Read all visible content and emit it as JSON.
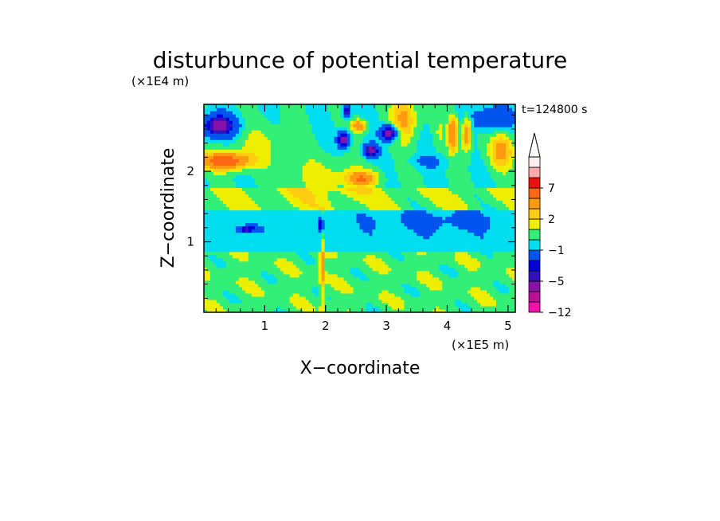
{
  "chart_data": {
    "type": "heatmap",
    "title": "disturbunce of potential temperature",
    "time_label": "t=124800 s",
    "xlabel": "X−coordinate",
    "ylabel": "Z−coordinate",
    "x_unit": "(×1E5 m)",
    "y_unit": "(×1E4 m)",
    "xlim": [
      0,
      5.12
    ],
    "ylim": [
      0,
      2.95
    ],
    "x_ticks": [
      "1",
      "2",
      "3",
      "4",
      "5"
    ],
    "y_ticks": [
      "1",
      "2"
    ],
    "colorbar": {
      "levels": [
        -12,
        -10,
        -8,
        -5,
        -4,
        -3,
        -1,
        0,
        1,
        2,
        3,
        5,
        7,
        8,
        9
      ],
      "labeled_ticks": [
        "−12",
        "−5",
        "−1",
        "2",
        "7"
      ],
      "colors": [
        "#ee11aa",
        "#bb1199",
        "#8811aa",
        "#3311bb",
        "#0000dd",
        "#0055ee",
        "#00ddee",
        "#33ee77",
        "#eeee00",
        "#ffcc11",
        "#ff9911",
        "#ff6611",
        "#ee1111",
        "#ffaaaa",
        "#ffeeee"
      ],
      "extend": "max"
    },
    "field_features": [
      {
        "x": 1.0,
        "z": 0.5,
        "value": 0.5,
        "description": "low-level warm layer"
      },
      {
        "x": 2.0,
        "z": 0.5,
        "value": 2,
        "description": "central plume"
      },
      {
        "x": 1.0,
        "z": 1.05,
        "value": -1,
        "description": "mid-level cool band"
      },
      {
        "x": 0.3,
        "z": 2.65,
        "value": -5,
        "description": "upper-left cold region"
      },
      {
        "x": 0.4,
        "z": 2.15,
        "value": 7,
        "description": "upper-left warm region"
      },
      {
        "x": 2.6,
        "z": 2.45,
        "value": -5,
        "description": "central cold cells"
      },
      {
        "x": 2.6,
        "z": 1.85,
        "value": 5,
        "description": "central warm cell"
      },
      {
        "x": 4.2,
        "z": 2.6,
        "value": 7,
        "description": "upper-right warm waves"
      }
    ]
  }
}
